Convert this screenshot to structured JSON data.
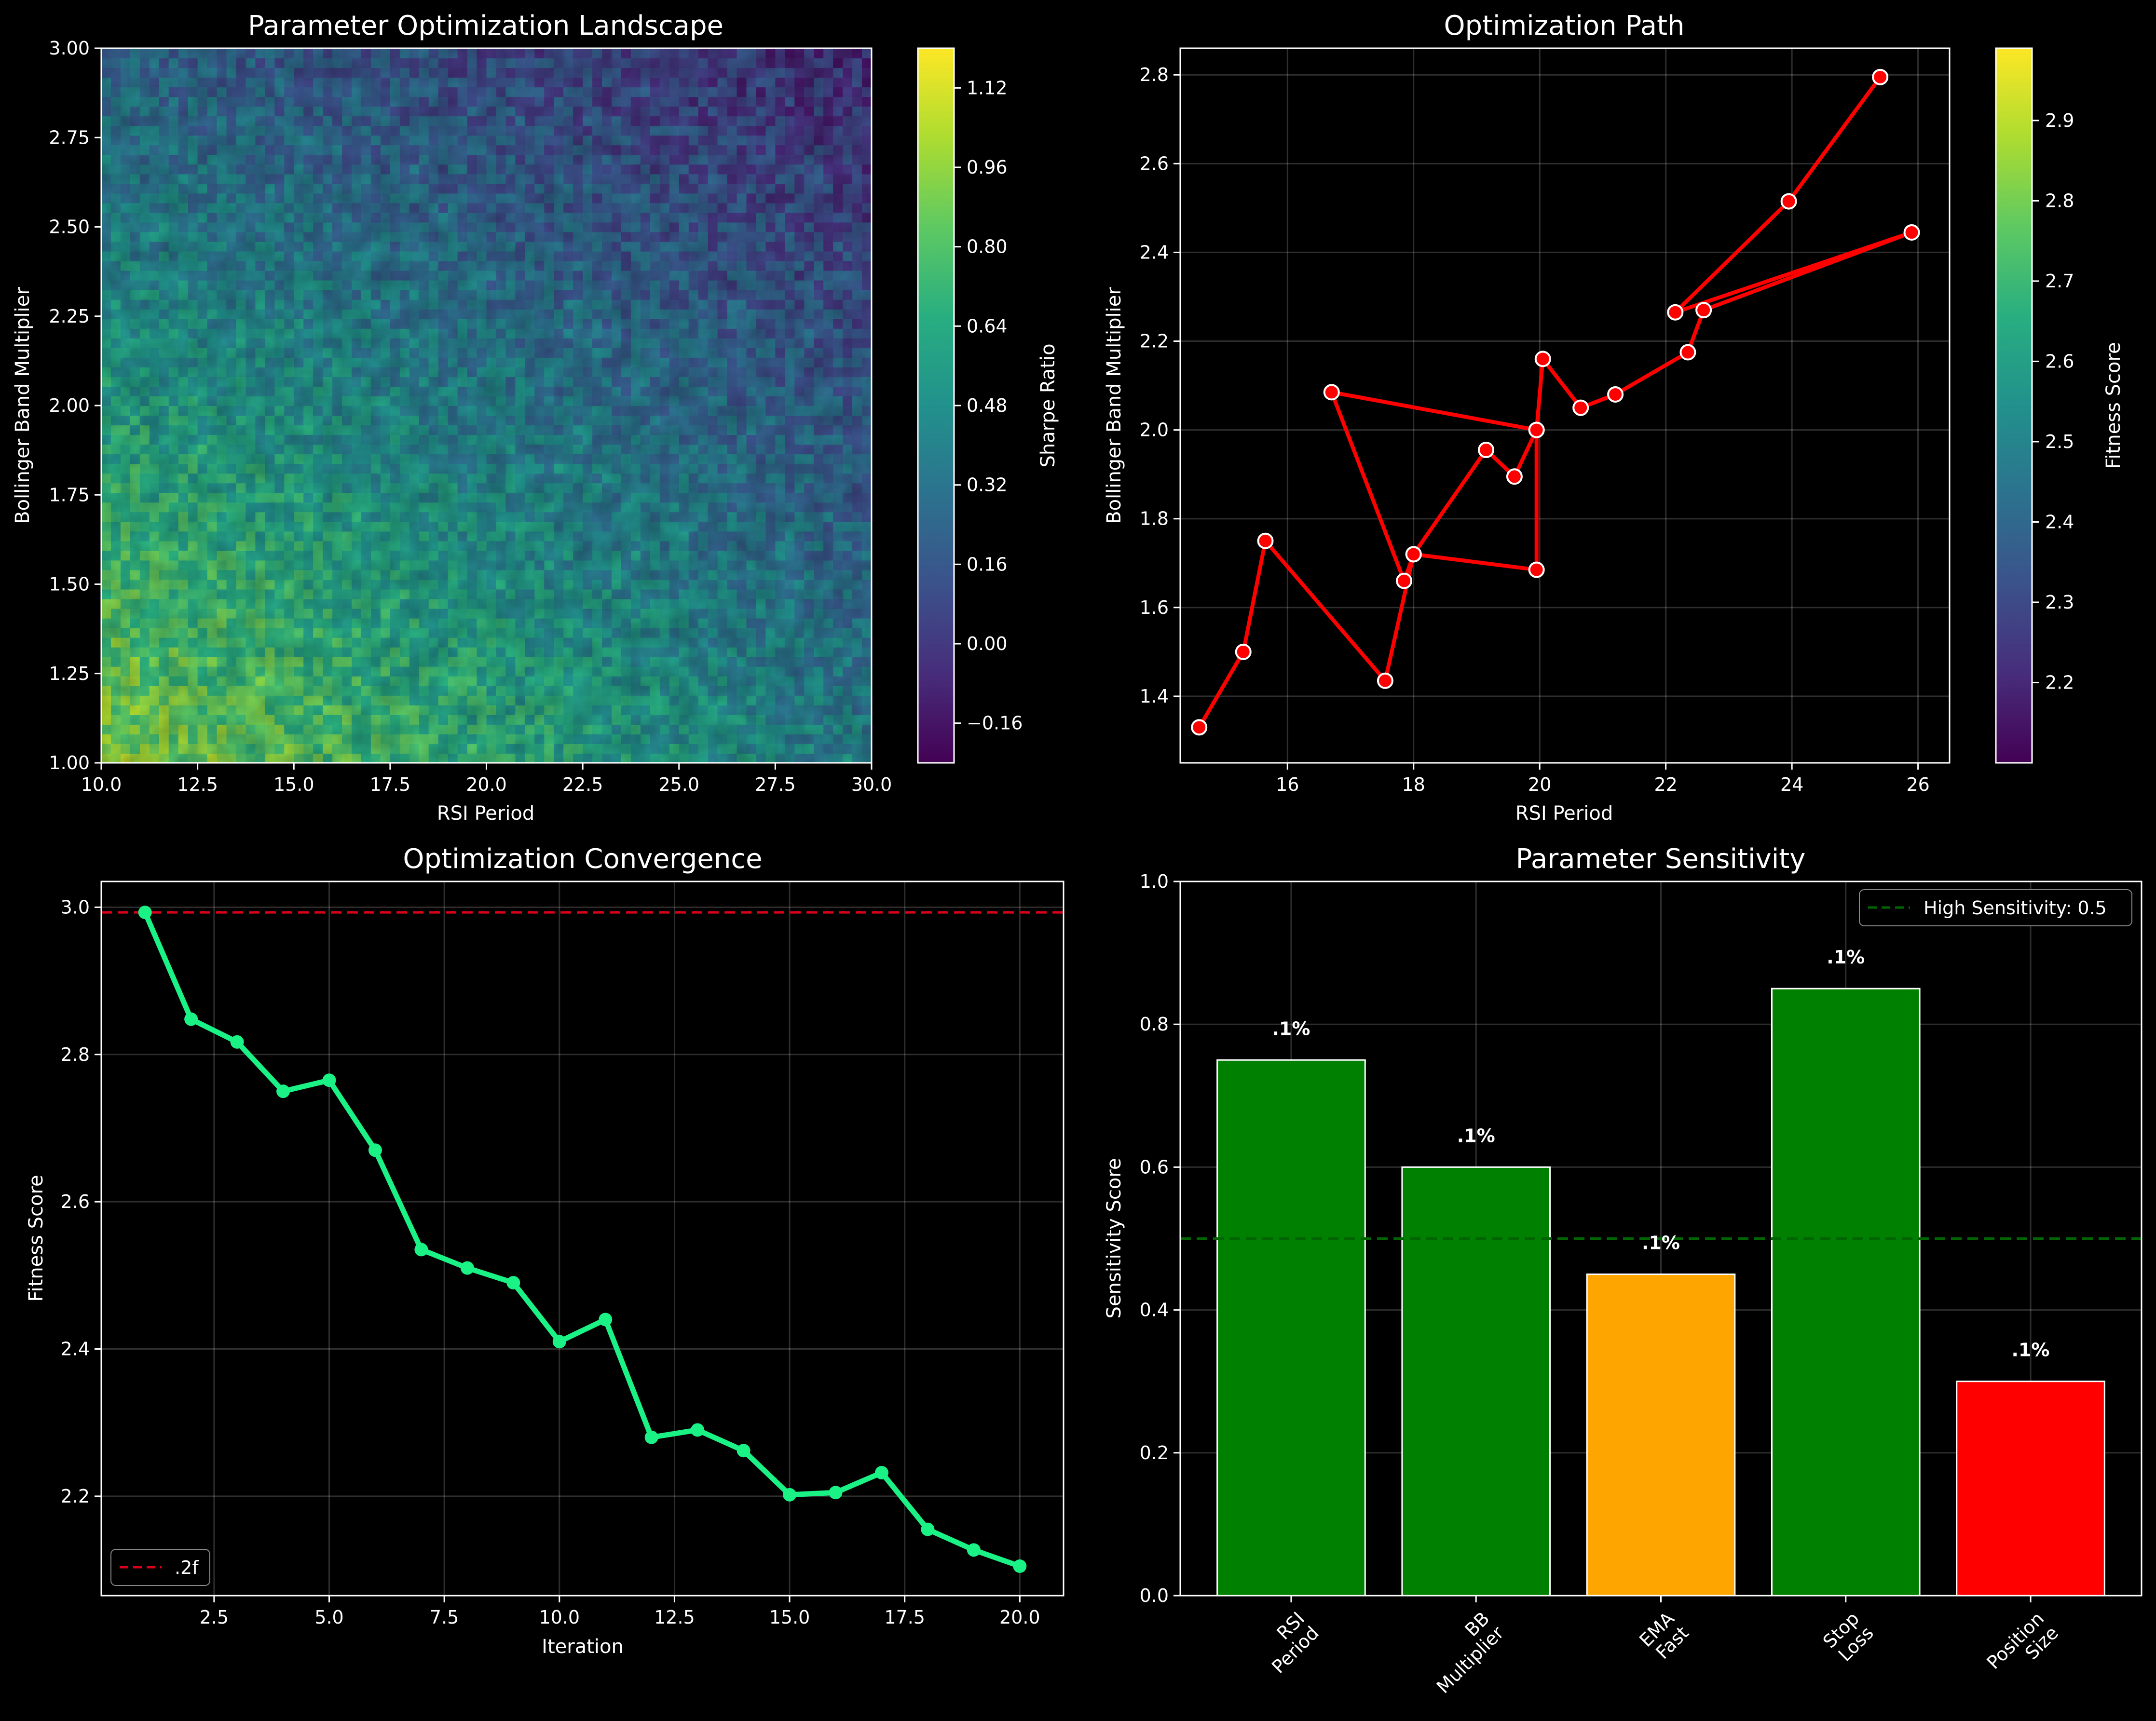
{
  "chart_data": [
    {
      "type": "heatmap",
      "title": "Parameter Optimization Landscape",
      "xlabel": "RSI Period",
      "ylabel": "Bollinger Band Multiplier",
      "xlim": [
        10,
        30
      ],
      "ylim": [
        1.0,
        3.0
      ],
      "xticks": [
        "10.0",
        "12.5",
        "15.0",
        "17.5",
        "20.0",
        "22.5",
        "25.0",
        "27.5",
        "30.0"
      ],
      "yticks": [
        "1.00",
        "1.25",
        "1.50",
        "1.75",
        "2.00",
        "2.25",
        "2.50",
        "2.75",
        "3.00"
      ],
      "colorbar": {
        "label": "Sharpe Ratio",
        "range": [
          -0.24,
          1.2
        ],
        "ticks": [
          "−0.16",
          "0.00",
          "0.16",
          "0.32",
          "0.48",
          "0.64",
          "0.80",
          "0.96",
          "1.12"
        ],
        "colormap": "viridis"
      },
      "description_values": {
        "peak_region": "low RSI period, low BB multiplier (~1.0 Sharpe)",
        "low_region": "high RSI period, high BB multiplier (~-0.1 Sharpe)"
      }
    },
    {
      "type": "line",
      "title": "Optimization Path",
      "xlabel": "RSI Period",
      "ylabel": "Bollinger Band Multiplier",
      "xlim": [
        14.3,
        26.5
      ],
      "ylim": [
        1.25,
        2.86
      ],
      "xticks": [
        "16",
        "18",
        "20",
        "22",
        "24",
        "26"
      ],
      "yticks": [
        "1.4",
        "1.6",
        "1.8",
        "2.0",
        "2.2",
        "2.4",
        "2.6",
        "2.8"
      ],
      "line_color": "#ff0000",
      "points": [
        {
          "x": 25.4,
          "y": 2.795
        },
        {
          "x": 23.95,
          "y": 2.515
        },
        {
          "x": 22.15,
          "y": 2.265
        },
        {
          "x": 25.9,
          "y": 2.445
        },
        {
          "x": 22.6,
          "y": 2.27
        },
        {
          "x": 22.35,
          "y": 2.175
        },
        {
          "x": 21.2,
          "y": 2.08
        },
        {
          "x": 20.65,
          "y": 2.05
        },
        {
          "x": 20.05,
          "y": 2.16
        },
        {
          "x": 19.95,
          "y": 2.0
        },
        {
          "x": 16.7,
          "y": 2.085
        },
        {
          "x": 17.85,
          "y": 1.66
        },
        {
          "x": 18.0,
          "y": 1.72
        },
        {
          "x": 19.95,
          "y": 1.685
        },
        {
          "x": 19.95,
          "y": 2.0
        },
        {
          "x": 19.6,
          "y": 1.895
        },
        {
          "x": 19.15,
          "y": 1.955
        },
        {
          "x": 18.0,
          "y": 1.72
        },
        {
          "x": 17.55,
          "y": 1.435
        },
        {
          "x": 15.65,
          "y": 1.75
        },
        {
          "x": 15.3,
          "y": 1.5
        },
        {
          "x": 14.6,
          "y": 1.33
        }
      ],
      "colorbar": {
        "label": "Fitness Score",
        "range": [
          2.1,
          2.99
        ],
        "ticks": [
          "2.2",
          "2.3",
          "2.4",
          "2.5",
          "2.6",
          "2.7",
          "2.8",
          "2.9"
        ],
        "colormap": "viridis"
      }
    },
    {
      "type": "line",
      "title": "Optimization Convergence",
      "xlabel": "Iteration",
      "ylabel": "Fitness Score",
      "xlim": [
        0.05,
        20.95
      ],
      "ylim": [
        2.065,
        3.035
      ],
      "xticks": [
        "2.5",
        "5.0",
        "7.5",
        "10.0",
        "12.5",
        "15.0",
        "17.5",
        "20.0"
      ],
      "yticks": [
        "2.2",
        "2.4",
        "2.6",
        "2.8",
        "3.0"
      ],
      "x": [
        1,
        2,
        3,
        4,
        5,
        6,
        7,
        8,
        9,
        10,
        11,
        12,
        13,
        14,
        15,
        16,
        17,
        18,
        19,
        20
      ],
      "y": [
        2.993,
        2.848,
        2.817,
        2.75,
        2.765,
        2.67,
        2.535,
        2.51,
        2.49,
        2.41,
        2.44,
        2.28,
        2.29,
        2.262,
        2.202,
        2.205,
        2.232,
        2.155,
        2.127,
        2.105
      ],
      "line_color": "#1af286",
      "reference_line": {
        "y": 2.993,
        "color": "#d9001b",
        "label": ".2f"
      },
      "legend": {
        "location": "bottom-left",
        "entries": [
          ".2f"
        ]
      }
    },
    {
      "type": "bar",
      "title": "Parameter Sensitivity",
      "xlabel": "",
      "ylabel": "Sensitivity Score",
      "ylim": [
        0.0,
        1.0
      ],
      "yticks": [
        "0.0",
        "0.2",
        "0.4",
        "0.6",
        "0.8",
        "1.0"
      ],
      "categories": [
        "RSI\nPeriod",
        "BB\nMultiplier",
        "EMA\nFast",
        "Stop\nLoss",
        "Position\nSize"
      ],
      "values": [
        0.75,
        0.6,
        0.45,
        0.85,
        0.3
      ],
      "colors": [
        "#008000",
        "#008000",
        "#ffa500",
        "#008000",
        "#ff0000"
      ],
      "bar_labels": [
        ".1%",
        ".1%",
        ".1%",
        ".1%",
        ".1%"
      ],
      "threshold_line": {
        "y": 0.5,
        "color": "#006400",
        "label": "High Sensitivity: 0.5"
      },
      "legend": {
        "location": "top-right",
        "entries": [
          "High Sensitivity: 0.5"
        ]
      }
    }
  ]
}
